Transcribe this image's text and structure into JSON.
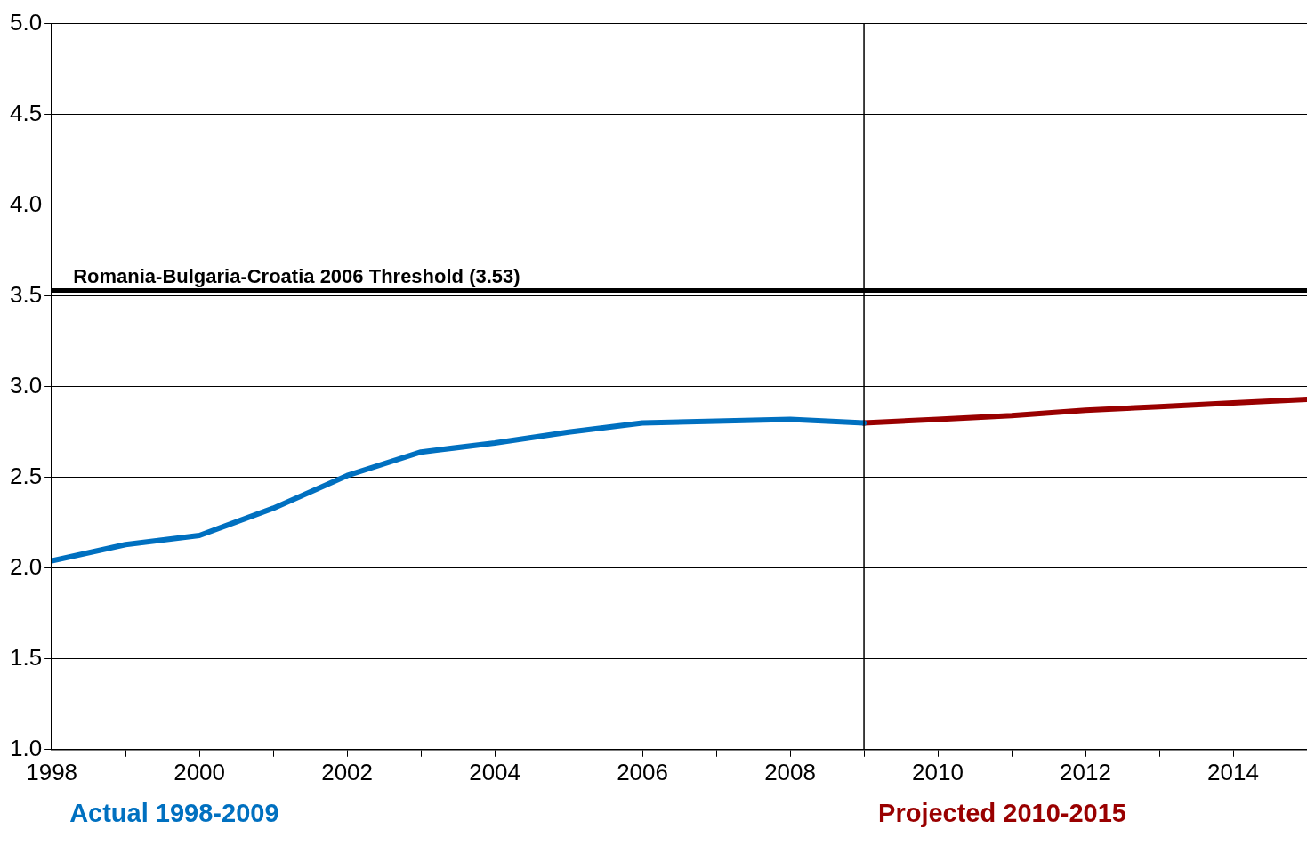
{
  "chart_data": {
    "type": "line",
    "series": [
      {
        "name": "Actual 1998-2009",
        "color": "#0070c0",
        "x": [
          1998,
          1999,
          2000,
          2001,
          2002,
          2003,
          2004,
          2005,
          2006,
          2007,
          2008,
          2009
        ],
        "values": [
          2.04,
          2.13,
          2.18,
          2.33,
          2.51,
          2.64,
          2.69,
          2.75,
          2.8,
          2.81,
          2.82,
          2.8
        ]
      },
      {
        "name": "Projected 2010-2015",
        "color": "#990000",
        "x": [
          2009,
          2010,
          2011,
          2012,
          2013,
          2014,
          2015
        ],
        "values": [
          2.8,
          2.82,
          2.84,
          2.87,
          2.89,
          2.91,
          2.93
        ]
      }
    ],
    "xlim": [
      1998,
      2015
    ],
    "xticks": [
      1998,
      {
        "value": 1999,
        "label": null
      },
      2000,
      {
        "value": 2001,
        "label": null
      },
      2002,
      {
        "value": 2003,
        "label": null
      },
      2004,
      {
        "value": 2005,
        "label": null
      },
      2006,
      {
        "value": 2007,
        "label": null
      },
      2008,
      {
        "value": 2009,
        "label": null
      },
      2010,
      {
        "value": 2011,
        "label": null
      },
      2012,
      {
        "value": 2013,
        "label": null
      },
      2014
    ],
    "ylim": [
      1.0,
      5.0
    ],
    "yticks": [
      {
        "value": 1.0,
        "label": "1.0"
      },
      1.5,
      {
        "value": 2.0,
        "label": "2.0"
      },
      2.5,
      {
        "value": 3.0,
        "label": "3.0"
      },
      3.5,
      {
        "value": 4.0,
        "label": "4.0"
      },
      4.5,
      {
        "value": 5.0,
        "label": "5.0"
      }
    ],
    "grid": "y",
    "legend": "bottom",
    "marker": "none",
    "line_style": "solid",
    "ref_lines": [
      {
        "axis": "y",
        "value": 3.53,
        "label": "Romania-Bulgaria-Croatia 2006 Threshold (3.53)",
        "color": "#000000"
      },
      {
        "axis": "x",
        "value": 2009,
        "color": "#000000"
      }
    ]
  }
}
